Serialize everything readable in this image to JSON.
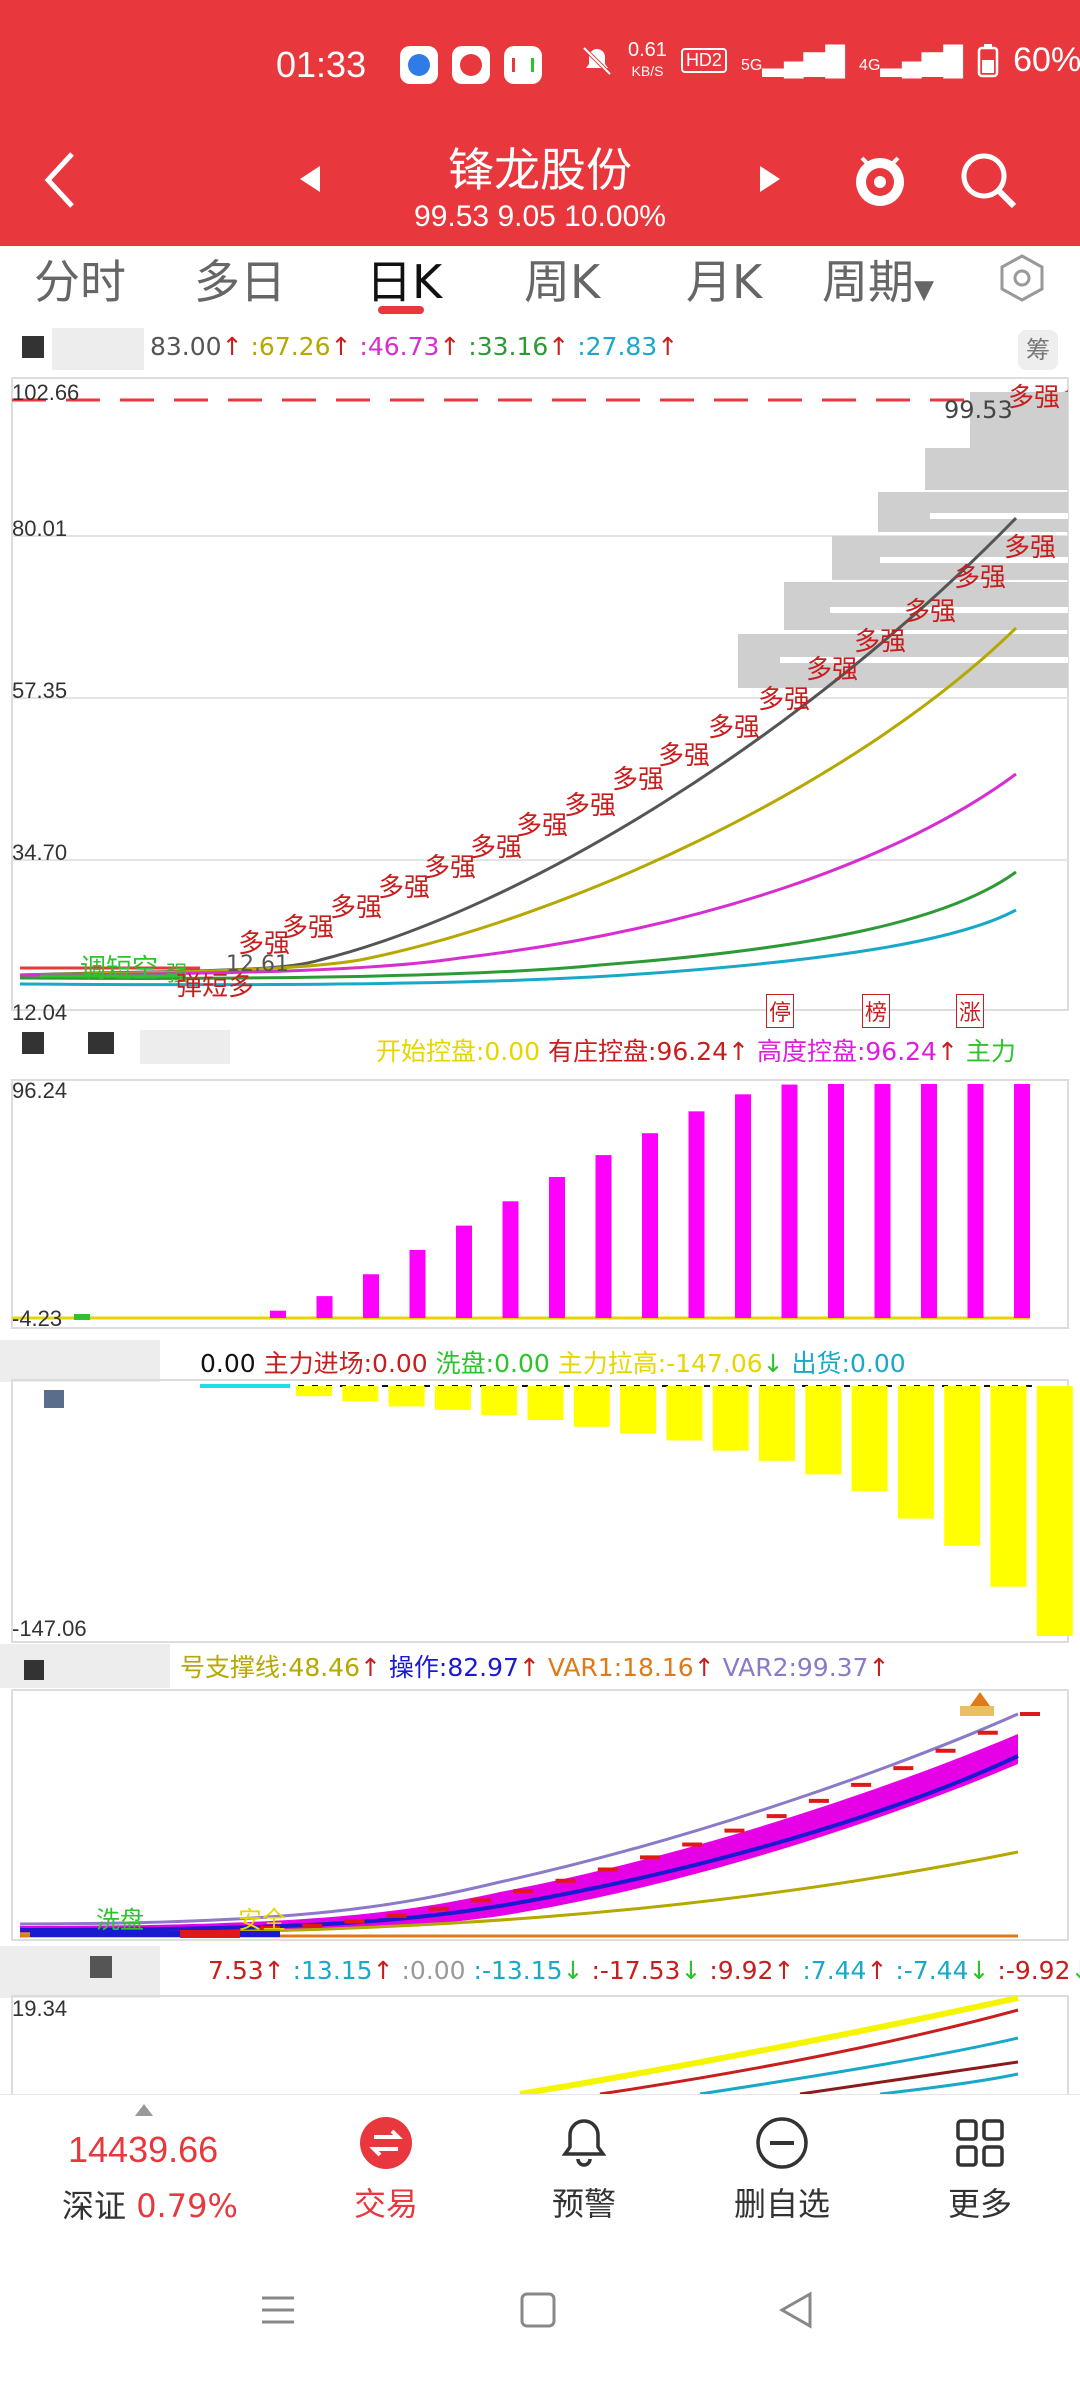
{
  "status_bar": {
    "time": "01:33",
    "net_speed_value": "0.61",
    "net_speed_unit": "KB/S",
    "hd_label": "HD2",
    "sig1": "5G",
    "sig2": "4G",
    "battery": "60%"
  },
  "header": {
    "title": "锋龙股份",
    "subtitle": "99.53 9.05 10.00%",
    "accent": "#E8383D"
  },
  "tabs": [
    {
      "label": "分时"
    },
    {
      "label": "多日"
    },
    {
      "label": "日K"
    },
    {
      "label": "周K"
    },
    {
      "label": "月K"
    },
    {
      "label": "周期"
    }
  ],
  "main_chart": {
    "legend": [
      {
        "text": "83.00",
        "color": "#555555"
      },
      {
        "text": ":67.26",
        "color": "#B5A800"
      },
      {
        "text": ":46.73",
        "color": "#D62ED0"
      },
      {
        "text": ":33.16",
        "color": "#2E9A36"
      },
      {
        "text": ":27.83",
        "color": "#19A9C8"
      }
    ],
    "chou_label": "筹",
    "y_axis": [
      "102.66",
      "80.01",
      "57.35",
      "34.70",
      "12.04"
    ],
    "price_tag": "99.53",
    "signal_label": "多强",
    "annotations": {
      "a1": "调短空",
      "a2": "弹短多",
      "a3": "强",
      "a4": "12.61"
    },
    "badges": [
      "停",
      "榜",
      "涨"
    ],
    "ma_colors": [
      "#555555",
      "#B5A800",
      "#D62ED0",
      "#2E9A36",
      "#19A9C8"
    ]
  },
  "control_panel": {
    "legend": [
      {
        "text": "开始控盘:0.00",
        "color": "#E5D600"
      },
      {
        "text": "有庄控盘:96.24",
        "color": "#C81E1E"
      },
      {
        "text": "高度控盘:96.24",
        "color": "#E01CE0"
      },
      {
        "text": "主力",
        "color": "#2BC52B"
      }
    ],
    "y_top": "96.24",
    "y_bottom": "-4.23",
    "chart_data": {
      "type": "bar",
      "name": "高度控盘",
      "values": [
        3,
        9,
        18,
        28,
        38,
        48,
        58,
        67,
        76,
        85,
        92,
        96,
        96.24,
        96.24,
        96.24,
        96.24,
        96.24
      ],
      "ylim": [
        -4.23,
        96.24
      ]
    }
  },
  "flow_panel": {
    "legend": [
      {
        "text": "0.00",
        "color": "#111111"
      },
      {
        "text": "主力进场:0.00",
        "color": "#C81E1E"
      },
      {
        "text": "洗盘:0.00",
        "color": "#2BC52B"
      },
      {
        "text": "主力拉高:-147.06",
        "color": "#E5D600"
      },
      {
        "text": "出货:0.00",
        "color": "#19A9C8"
      }
    ],
    "y_bottom": "-147.06",
    "chart_data": {
      "type": "bar",
      "name": "主力拉高",
      "values": [
        -6,
        -9,
        -12,
        -14,
        -17,
        -20,
        -24,
        -28,
        -32,
        -38,
        -44,
        -52,
        -62,
        -78,
        -94,
        -118,
        -147.06
      ],
      "ylim": [
        -147.06,
        0
      ]
    }
  },
  "support_panel": {
    "legend": [
      {
        "text": "号支撑线:48.46",
        "color": "#B5A800"
      },
      {
        "text": "操作:82.97",
        "color": "#1A1ACF"
      },
      {
        "text": "VAR1:18.16",
        "color": "#E0791A"
      },
      {
        "text": "VAR2:99.37",
        "color": "#8A7AC8"
      }
    ],
    "labels": {
      "wash": "洗盘",
      "safe": "安全"
    }
  },
  "bottom_panel": {
    "legend": [
      {
        "text": "7.53",
        "color": "#C81E1E"
      },
      {
        "text": ":13.15",
        "color": "#19A9C8"
      },
      {
        "text": ":0.00",
        "color": "#999999"
      },
      {
        "text": ":-13.15",
        "color": "#19A9C8"
      },
      {
        "text": ":-17.53",
        "color": "#C81E1E"
      },
      {
        "text": ":9.92",
        "color": "#C81E1E"
      },
      {
        "text": ":7.44",
        "color": "#19A9C8"
      },
      {
        "text": ":-7.44",
        "color": "#19A9C8"
      },
      {
        "text": ":-9.92",
        "color": "#C81E1E"
      }
    ],
    "y_top": "19.34"
  },
  "bottom_nav": {
    "index_value": "14439.66",
    "index_name": "深证",
    "index_change": "0.79%",
    "items": [
      {
        "label": "交易",
        "icon": "trade-icon"
      },
      {
        "label": "预警",
        "icon": "bell-icon"
      },
      {
        "label": "删自选",
        "icon": "minus-circle-icon"
      },
      {
        "label": "更多",
        "icon": "grid-icon"
      }
    ]
  }
}
